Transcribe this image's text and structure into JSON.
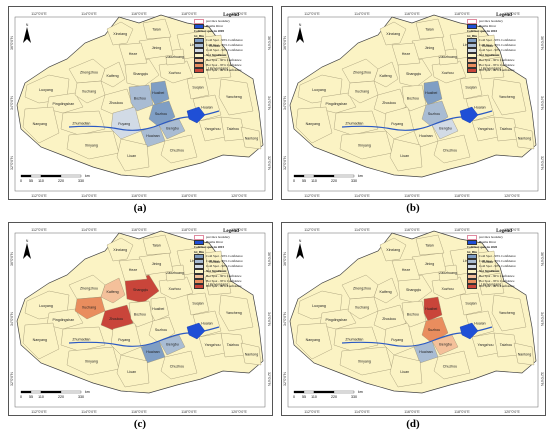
{
  "panels": [
    {
      "caption": "(a)",
      "legend_title": "Legend",
      "legend_year": "Cold hot spots in 2005",
      "hot": [],
      "cold99": [
        "Huaibei",
        "Suzhou"
      ],
      "cold95": [
        "Bozhou",
        "Bengbu",
        "Huainan"
      ],
      "cold90": [
        "Fuyang"
      ]
    },
    {
      "caption": "(b)",
      "legend_title": "Legend",
      "legend_year": "Cold hot spots in 2010",
      "hot": [],
      "cold99": [
        "Huaibei"
      ],
      "cold95": [
        "Suzhou"
      ],
      "cold90": [
        "Bengbu"
      ]
    },
    {
      "caption": "(c)",
      "legend_title": "Legend",
      "legend_year": "Cold hot spots in 2015",
      "hot": [
        "Zhoukou",
        "Shangqiu"
      ],
      "hot95": [
        "Xuchang"
      ],
      "hot90": [
        "Kaifeng"
      ],
      "cold99": [
        "Huainan"
      ],
      "cold95": [
        "Bengbu"
      ],
      "cold90": []
    },
    {
      "caption": "(d)",
      "legend_title": "Legend",
      "legend_year": "Cold hot spots in 2020",
      "hot": [
        "Huaibei"
      ],
      "hot95": [
        "Suzhou"
      ],
      "hot90": [
        "Bengbu"
      ],
      "cold99": [],
      "cold95": [
        "Huainan"
      ],
      "cold90": []
    }
  ],
  "legend": {
    "boundary": "province boundary",
    "river": "Huaihe River",
    "gi_bin": "Gi_Bin",
    "items": [
      {
        "label": "Cold Spot - 99% Confidence",
        "color": "#7f9ec4"
      },
      {
        "label": "Cold Spot - 95% Confidence",
        "color": "#a9bcd3"
      },
      {
        "label": "Cold Spot - 90% Confidence",
        "color": "#d2dbe6"
      },
      {
        "label": "Not Significant",
        "color": "#fbf3c4"
      },
      {
        "label": "Hot Spot - 90% Confidence",
        "color": "#f4c09a"
      },
      {
        "label": "Hot Spot - 95% Confidence",
        "color": "#e98d5e"
      },
      {
        "label": "Hot Spot - 99% Confidence",
        "color": "#c9453a"
      }
    ]
  },
  "axis_labels": {
    "top": [
      "112°0'0\"E",
      "114°0'0\"E",
      "116°0'0\"E",
      "118°0'0\"E",
      "120°0'0\"E"
    ],
    "left": [
      "36°0'0\"N",
      "34°0'0\"N",
      "32°0'0\"N"
    ]
  },
  "scale": {
    "ticks": [
      "0",
      "55",
      "110",
      "220",
      "330"
    ],
    "unit": "km"
  },
  "cities": [
    "Xinxiang",
    "Zhengzhou",
    "Kaifeng",
    "Luoyang",
    "Pingdingshan",
    "Xuchang",
    "Zhoukou",
    "Shangqiu",
    "Nanyang",
    "Zhumadian",
    "Xinyang",
    "Fuyang",
    "Bozhou",
    "Huaibei",
    "Suzhou",
    "Bengbu",
    "Huainan",
    "Liuan",
    "Chuzhou",
    "Xuzhou",
    "Suqian",
    "Huaian",
    "Yangzhou",
    "Taizhou",
    "Lianyungang",
    "Yancheng",
    "Linyi",
    "Zaozhuang",
    "Jining",
    "Heze",
    "Taian",
    "Rizhao",
    "Nantong"
  ],
  "city_colors": {
    "base": "#fbf3c4"
  }
}
